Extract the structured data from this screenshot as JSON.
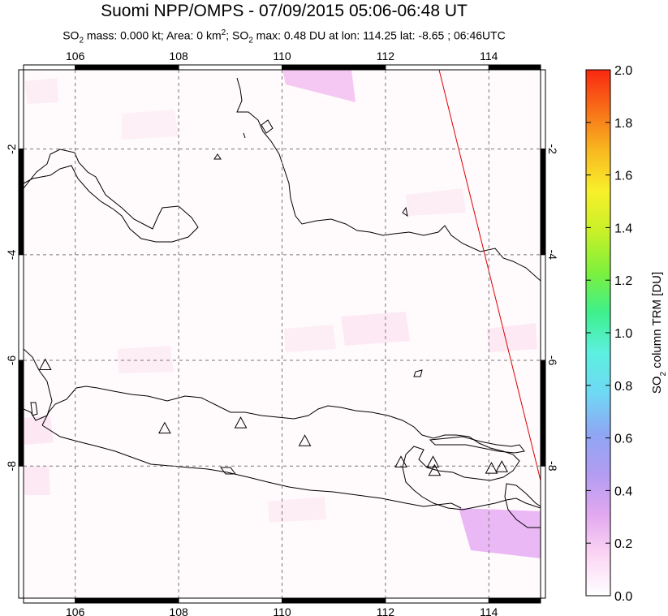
{
  "title": "Suomi NPP/OMPS - 07/09/2015 05:06-06:48 UT",
  "subtitle": {
    "text_before_sub1": "SO",
    "sub1": "2",
    "text_mass_area": " mass: 0.000 kt; Area: 0 km",
    "sup": "2",
    "text_so2": "; SO",
    "sub2": "2",
    "text_tail": " max: 0.48 DU at lon: 114.25 lat: -8.65 ; 06:46UTC"
  },
  "map": {
    "lon_range": [
      105,
      115
    ],
    "lat_range": [
      -10.5,
      -0.5
    ],
    "lon_ticks": [
      "106",
      "108",
      "110",
      "112",
      "114"
    ],
    "lat_ticks": [
      "-2",
      "-4",
      "-6",
      "-8"
    ],
    "volcanoes_lonlat": [
      [
        105.42,
        -6.1
      ],
      [
        107.73,
        -7.3
      ],
      [
        109.2,
        -7.2
      ],
      [
        110.44,
        -7.54
      ],
      [
        112.3,
        -7.94
      ],
      [
        112.92,
        -7.94
      ],
      [
        112.95,
        -8.1
      ],
      [
        114.05,
        -8.06
      ],
      [
        114.25,
        -8.03
      ]
    ]
  },
  "colorbar": {
    "label_prefix": "SO",
    "label_sub": "2",
    "label_suffix": " column TRM [DU]",
    "ticks": [
      "2.0",
      "1.8",
      "1.6",
      "1.4",
      "1.2",
      "1.0",
      "0.8",
      "0.6",
      "0.4",
      "0.2",
      "0.0"
    ],
    "range": [
      0,
      2.0
    ],
    "colors": [
      "#ffffff",
      "#fbd6f4",
      "#e2a8f0",
      "#b39cf2",
      "#8fa6f4",
      "#6fd8f4",
      "#5cf0e0",
      "#3ef08c",
      "#7ef03c",
      "#c8f028",
      "#f8f02a",
      "#f8b820",
      "#f87018",
      "#f82810"
    ]
  }
}
